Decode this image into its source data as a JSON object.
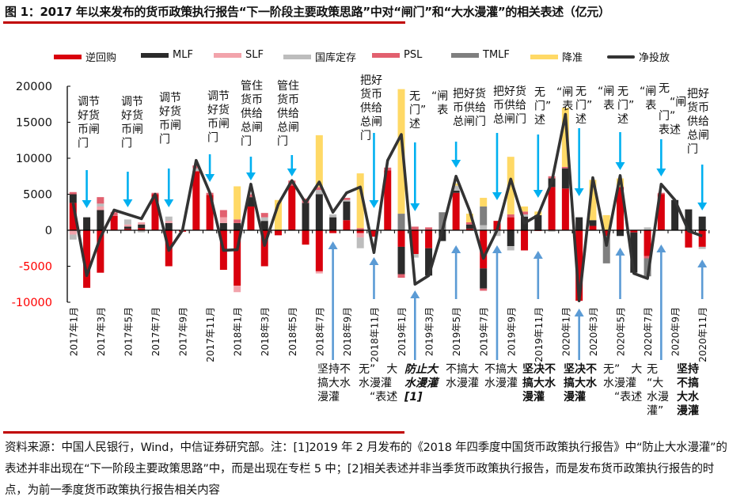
{
  "title": "图 1：2017 年以来发布的货币政策执行报告“下一阶段主要政策思路”中对“闸门”和“大水漫灌”的相关表述（亿元）",
  "note": "资料来源：中国人民银行，Wind，中信证券研究部。注：[1]2019 年 2 月发布的《2018 年四季度中国货币政策执行报告》中“防止大水漫灌”的表述并非出现在“下一阶段主要政策思路”中，而是出现在专栏 5 中；[2]相关表述并非当季货币政策执行报告，而是发布货币政策执行报告的时点，为前一季度货币政策执行报告相关内容",
  "colors": {
    "accent": "#c00000",
    "down_arrow": "#00b0f0",
    "up_arrow": "#5b9bd5",
    "negative_tick": "#ff0000"
  },
  "chart_data": {
    "type": "bar",
    "stacked": true,
    "title": "2017 年以来发布的货币政策执行报告“下一阶段主要政策思路”中对“闸门”和“大水漫灌”的相关表述（亿元）",
    "ylim": [
      -10000,
      20000
    ],
    "yticks": [
      "20000",
      "15000",
      "10000",
      "5000",
      "0",
      "-5000",
      "-10000"
    ],
    "ytick_values": [
      20000,
      15000,
      10000,
      5000,
      0,
      -5000,
      -10000
    ],
    "legend_position": "top",
    "categories": [
      "2017年1月",
      "2017年2月",
      "2017年3月",
      "2017年4月",
      "2017年5月",
      "2017年6月",
      "2017年7月",
      "2017年8月",
      "2017年9月",
      "2017年10月",
      "2017年11月",
      "2017年12月",
      "2018年1月",
      "2018年2月",
      "2018年3月",
      "2018年4月",
      "2018年5月",
      "2018年6月",
      "2018年7月",
      "2018年8月",
      "2018年9月",
      "2018年10月",
      "2018年11月",
      "2018年12月",
      "2019年1月",
      "2019年2月",
      "2019年3月",
      "2019年4月",
      "2019年5月",
      "2019年6月",
      "2019年7月",
      "2019年8月",
      "2019年9月",
      "2019年10月",
      "2019年11月",
      "2019年12月",
      "2020年1月",
      "2020年2月",
      "2020年3月",
      "2020年4月",
      "2020年5月",
      "2020年6月",
      "2020年7月",
      "2020年8月",
      "2020年9月",
      "2020年10月",
      "2020年11月"
    ],
    "xtick_every": 2,
    "series": [
      {
        "name": "逆回购",
        "kind": "bar",
        "color": "#d9000d",
        "values": [
          3800,
          -8000,
          -5900,
          2000,
          200,
          300,
          5000,
          -5000,
          -200,
          8200,
          4900,
          -5500,
          -7700,
          3300,
          -5000,
          -700,
          6200,
          -2000,
          -5700,
          -400,
          1400,
          -400,
          -900,
          8300,
          -2300,
          -3300,
          -2500,
          0,
          5200,
          200,
          -5300,
          1300,
          1800,
          -2800,
          -100,
          6000,
          5800,
          -9800,
          600,
          -800,
          6000,
          -300,
          -3600,
          5000,
          0,
          -2400,
          -2300
        ]
      },
      {
        "name": "MLF",
        "kind": "bar",
        "color": "#2b2b2b",
        "values": [
          1200,
          1800,
          2800,
          0,
          300,
          500,
          0,
          1000,
          0,
          0,
          0,
          1000,
          1000,
          1300,
          1300,
          0,
          0,
          3800,
          5000,
          1800,
          2600,
          0,
          0,
          0,
          -3800,
          0,
          -3800,
          -1500,
          300,
          600,
          -2800,
          0,
          -2200,
          1900,
          2100,
          1200,
          2800,
          1800,
          800,
          0,
          -800,
          -5600,
          0,
          0,
          4200,
          2900,
          1900
        ]
      },
      {
        "name": "SLF",
        "kind": "bar",
        "color": "#f2a3ab",
        "values": [
          -600,
          0,
          500,
          0,
          300,
          300,
          0,
          300,
          0,
          0,
          0,
          800,
          -900,
          0,
          0,
          0,
          0,
          0,
          -300,
          0,
          0,
          -600,
          0,
          0,
          0,
          0,
          0,
          0,
          0,
          0,
          0,
          0,
          0,
          0,
          0,
          0,
          0,
          0,
          0,
          0,
          0,
          0,
          0,
          0,
          0,
          0,
          0
        ]
      },
      {
        "name": "国库定存",
        "kind": "bar",
        "color": "#bdbdbd",
        "values": [
          -700,
          0,
          400,
          0,
          700,
          -300,
          0,
          600,
          0,
          400,
          0,
          0,
          0,
          0,
          500,
          0,
          0,
          0,
          600,
          400,
          200,
          -1500,
          0,
          0,
          0,
          -500,
          0,
          0,
          700,
          0,
          700,
          -800,
          -600,
          300,
          0,
          -200,
          0,
          0,
          0,
          0,
          0,
          0,
          400,
          0,
          0,
          0,
          -300
        ]
      },
      {
        "name": "PSL",
        "kind": "bar",
        "color": "#e2606f",
        "values": [
          300,
          0,
          900,
          500,
          0,
          0,
          200,
          0,
          0,
          400,
          300,
          1000,
          500,
          400,
          600,
          0,
          700,
          600,
          400,
          0,
          300,
          300,
          0,
          400,
          -500,
          500,
          400,
          0,
          0,
          300,
          -300,
          0,
          400,
          400,
          0,
          300,
          200,
          0,
          0,
          0,
          0,
          0,
          -300,
          200,
          0,
          0,
          0
        ]
      },
      {
        "name": "TMLF",
        "kind": "bar",
        "color": "#7f7f7f",
        "values": [
          0,
          0,
          0,
          0,
          0,
          0,
          0,
          0,
          0,
          0,
          0,
          0,
          0,
          0,
          0,
          0,
          0,
          0,
          0,
          0,
          0,
          0,
          0,
          0,
          2300,
          0,
          0,
          2500,
          0,
          0,
          2600,
          0,
          0,
          0,
          0,
          0,
          0,
          0,
          0,
          -3800,
          0,
          0,
          -2500,
          0,
          0,
          0,
          0
        ]
      },
      {
        "name": "降准",
        "kind": "bar",
        "color": "#ffd966",
        "values": [
          0,
          0,
          0,
          0,
          0,
          0,
          0,
          0,
          0,
          0,
          0,
          0,
          4600,
          0,
          0,
          4200,
          0,
          0,
          7200,
          0,
          0,
          7600,
          0,
          0,
          17300,
          0,
          0,
          0,
          300,
          1200,
          1200,
          0,
          8000,
          700,
          500,
          0,
          8200,
          0,
          5600,
          2100,
          1200,
          0,
          0,
          0,
          0,
          0,
          0
        ]
      },
      {
        "name": "净投放",
        "kind": "line",
        "color": "#333333",
        "values": [
          3800,
          -6300,
          -1000,
          2800,
          2200,
          1600,
          5000,
          -2800,
          0,
          9700,
          5200,
          -2800,
          -2700,
          6400,
          -2100,
          3600,
          6900,
          3800,
          6700,
          2500,
          5200,
          6000,
          -3100,
          9700,
          13300,
          -7500,
          -6300,
          0,
          7500,
          2700,
          -3900,
          0,
          7100,
          1000,
          2100,
          6700,
          16100,
          -9800,
          7300,
          -2100,
          7600,
          -6000,
          -6700,
          6400,
          4200,
          -100,
          -800
        ]
      }
    ],
    "annotations_gate": [
      {
        "month_index": 1,
        "lines": [
          "调节",
          "好货",
          "币闸",
          "门"
        ]
      },
      {
        "month_index": 4,
        "lines": [
          "调节",
          "好货",
          "币闸",
          "门"
        ]
      },
      {
        "month_index": 7,
        "lines": [
          "调节",
          "好货",
          "币闸",
          "门"
        ]
      },
      {
        "month_index": 10,
        "lines": [
          "调节",
          "好货",
          "币闸",
          "门"
        ]
      },
      {
        "month_index": 13,
        "lines": [
          "管住",
          "货币",
          "供给",
          "总闸",
          "门"
        ]
      },
      {
        "month_index": 16,
        "lines": [
          "管住",
          "货币",
          "供给",
          "总闸",
          "门"
        ]
      },
      {
        "month_index": 22,
        "lines": [
          "把好",
          "货币",
          "供给",
          "总闸",
          "门"
        ]
      },
      {
        "month_index": 25,
        "lines": [
          "无　“闸",
          "门”　表",
          "述"
        ]
      },
      {
        "month_index": 28,
        "lines": [
          "把好货",
          "币供给",
          "总闸门"
        ]
      },
      {
        "month_index": 31,
        "lines": [
          "把好货",
          "币供给",
          "总闸门"
        ]
      },
      {
        "month_index": 34,
        "lines": [
          "无　“闸",
          "门”　表",
          "述"
        ]
      },
      {
        "month_index": 37,
        "lines": [
          "无　“闸",
          "门”　表",
          "述"
        ]
      },
      {
        "month_index": 40,
        "lines": [
          "无　“闸",
          "门”　表",
          "述"
        ]
      },
      {
        "month_index": 43,
        "lines": [
          "无",
          "　“闸",
          "门”",
          "表述"
        ]
      },
      {
        "month_index": 46,
        "lines": [
          "把好",
          "货币",
          "供给",
          "总闸",
          "门"
        ]
      }
    ],
    "annotations_flood": [
      {
        "month_index": 19,
        "lines": [
          "坚持不",
          "搞大水",
          "漫灌"
        ],
        "style": "normal"
      },
      {
        "month_index": 22,
        "lines": [
          "无”　大",
          "水漫灌",
          "　“表述"
        ],
        "style": "normal"
      },
      {
        "month_index": 25,
        "lines": [
          "防止大",
          "水漫灌",
          "[1]"
        ],
        "style": "bold-italic"
      },
      {
        "month_index": 28,
        "lines": [
          "不搞大",
          "水漫灌"
        ],
        "style": "normal"
      },
      {
        "month_index": 31,
        "lines": [
          "不搞大",
          "水漫灌"
        ],
        "style": "normal"
      },
      {
        "month_index": 34,
        "lines": [
          "坚决不",
          "搞大水",
          "漫灌"
        ],
        "style": "bold"
      },
      {
        "month_index": 37,
        "lines": [
          "坚决不",
          "搞大水",
          "漫灌"
        ],
        "style": "bold"
      },
      {
        "month_index": 40,
        "lines": [
          "无”　大",
          "水漫灌",
          "　“表述"
        ],
        "style": "normal"
      },
      {
        "month_index": 43,
        "lines": [
          "无",
          "“大",
          "水漫",
          "灌”"
        ],
        "style": "normal"
      },
      {
        "month_index": 46,
        "lines": [
          "坚持",
          "不搞",
          "大水",
          "漫灌"
        ],
        "style": "bold"
      }
    ]
  }
}
